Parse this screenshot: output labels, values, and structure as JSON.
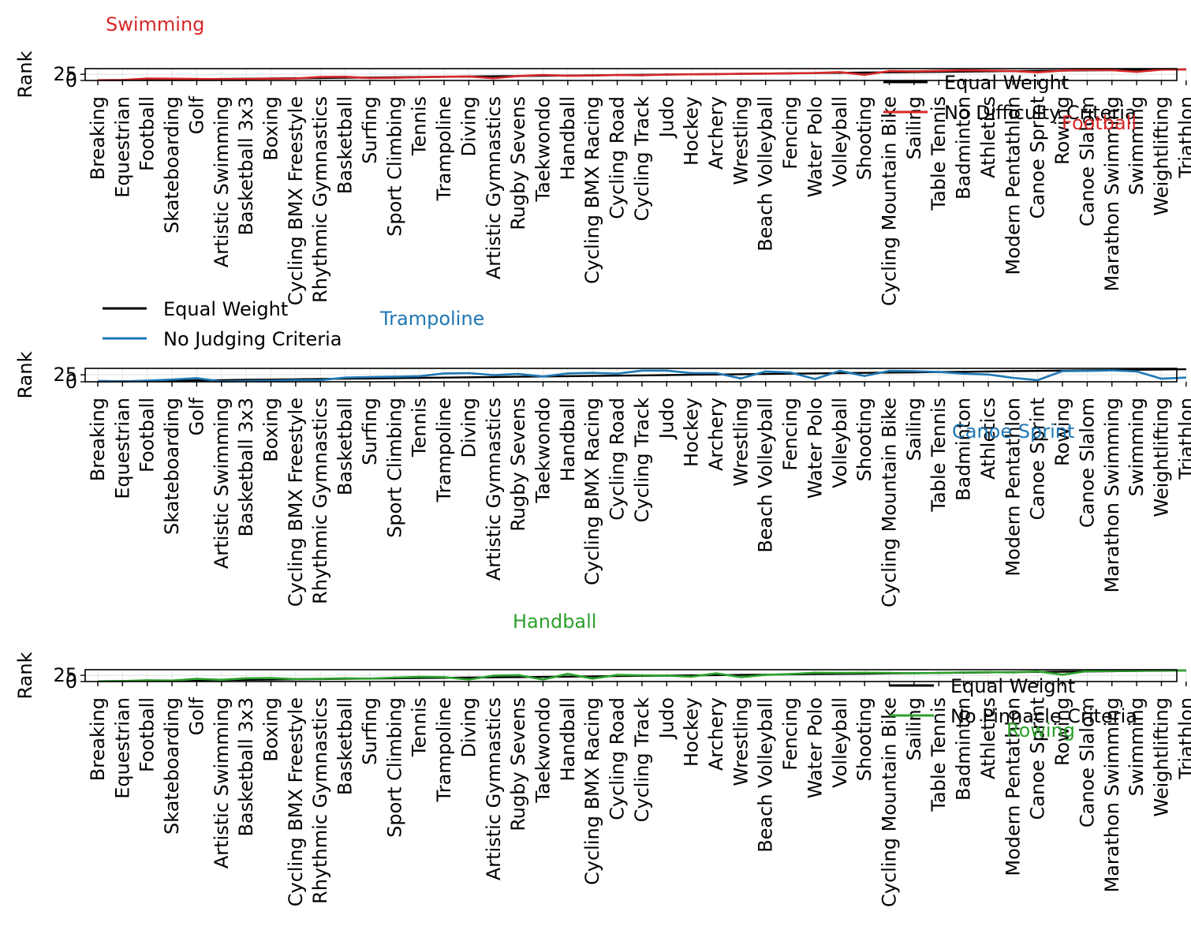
{
  "chart_data": [
    {
      "type": "line",
      "ylabel": "Rank",
      "yticks": [
        "0",
        "25"
      ],
      "ylim": [
        0,
        48
      ],
      "grid": true,
      "legend_position": "right",
      "categories": [
        "Breaking",
        "Equestrian",
        "Football",
        "Skateboarding",
        "Golf",
        "Artistic Swimming",
        "Basketball 3x3",
        "Boxing",
        "Cycling BMX Freestyle",
        "Rhythmic Gymnastics",
        "Basketball",
        "Surfing",
        "Sport Climbing",
        "Tennis",
        "Trampoline",
        "Diving",
        "Artistic Gymnastics",
        "Rugby Sevens",
        "Taekwondo",
        "Handball",
        "Cycling BMX Racing",
        "Cycling Road",
        "Cycling Track",
        "Judo",
        "Hockey",
        "Archery",
        "Wrestling",
        "Beach Volleyball",
        "Fencing",
        "Water Polo",
        "Volleyball",
        "Shooting",
        "Cycling Mountain Bike",
        "Sailing",
        "Table Tennis",
        "Badminton",
        "Athletics",
        "Modern Pentathlon",
        "Canoe Sprint",
        "Rowing",
        "Canoe Slalom",
        "Marathon Swimming",
        "Swimming",
        "Weightlifting",
        "Triathlon"
      ],
      "series": [
        {
          "name": "Equal Weight",
          "color": "#000000",
          "values": [
            1,
            2,
            3,
            4,
            5,
            6,
            7,
            8,
            9,
            10,
            11,
            12,
            13,
            14,
            15,
            16,
            17,
            18,
            19,
            20,
            21,
            22,
            23,
            24,
            25,
            26,
            27,
            28,
            29,
            30,
            31,
            32,
            33,
            34,
            35,
            36,
            37,
            38,
            39,
            40,
            41,
            42,
            43,
            44,
            45
          ]
        },
        {
          "name": "No Difficulty Criteria",
          "color": "#d62728",
          "values": [
            1,
            2,
            8,
            7,
            6,
            5,
            6,
            7,
            8,
            14,
            15,
            10,
            11,
            13,
            15,
            16,
            9,
            18,
            22,
            19,
            20,
            22,
            21,
            24,
            25,
            26,
            27,
            28,
            29,
            30,
            34,
            23,
            38,
            37,
            39,
            41,
            40,
            38,
            33,
            40,
            43,
            42,
            35,
            44,
            45
          ]
        },
        {
          "name": "Swimming",
          "color": "#d62728",
          "annotation": true
        },
        {
          "name": "Football",
          "color": "#d62728",
          "annotation": true
        }
      ]
    },
    {
      "type": "line",
      "ylabel": "Rank",
      "yticks": [
        "0",
        "25"
      ],
      "ylim": [
        0,
        48
      ],
      "grid": true,
      "legend_position": "top-left",
      "categories": [
        "Breaking",
        "Equestrian",
        "Football",
        "Skateboarding",
        "Golf",
        "Artistic Swimming",
        "Basketball 3x3",
        "Boxing",
        "Cycling BMX Freestyle",
        "Rhythmic Gymnastics",
        "Basketball",
        "Surfing",
        "Sport Climbing",
        "Tennis",
        "Trampoline",
        "Diving",
        "Artistic Gymnastics",
        "Rugby Sevens",
        "Taekwondo",
        "Handball",
        "Cycling BMX Racing",
        "Cycling Road",
        "Cycling Track",
        "Judo",
        "Hockey",
        "Archery",
        "Wrestling",
        "Beach Volleyball",
        "Fencing",
        "Water Polo",
        "Volleyball",
        "Shooting",
        "Cycling Mountain Bike",
        "Sailing",
        "Table Tennis",
        "Badminton",
        "Athletics",
        "Modern Pentathlon",
        "Canoe Sprint",
        "Rowing",
        "Canoe Slalom",
        "Marathon Swimming",
        "Swimming",
        "Weightlifting",
        "Triathlon"
      ],
      "series": [
        {
          "name": "Equal Weight",
          "color": "#000000",
          "values": [
            1,
            2,
            3,
            4,
            5,
            6,
            7,
            8,
            9,
            10,
            11,
            12,
            13,
            14,
            15,
            16,
            17,
            18,
            19,
            20,
            21,
            22,
            23,
            24,
            25,
            26,
            27,
            28,
            29,
            30,
            31,
            32,
            33,
            34,
            35,
            36,
            37,
            38,
            39,
            40,
            41,
            42,
            43,
            44,
            45
          ]
        },
        {
          "name": "No Judging Criteria",
          "color": "#1f77b4",
          "values": [
            3,
            1,
            4,
            8,
            13,
            1,
            3,
            4,
            6,
            6,
            15,
            17,
            18,
            20,
            30,
            31,
            24,
            28,
            19,
            30,
            32,
            29,
            40,
            40,
            31,
            31,
            12,
            37,
            33,
            10,
            39,
            21,
            39,
            38,
            35,
            29,
            26,
            14,
            6,
            38,
            39,
            41,
            37,
            11,
            15
          ]
        },
        {
          "name": "Trampoline",
          "color": "#1f77b4",
          "annotation": true
        },
        {
          "name": "Canoe Sprint",
          "color": "#1f77b4",
          "annotation": true
        }
      ]
    },
    {
      "type": "line",
      "ylabel": "Rank",
      "yticks": [
        "0",
        "25"
      ],
      "ylim": [
        0,
        48
      ],
      "grid": true,
      "legend_position": "right",
      "categories": [
        "Breaking",
        "Equestrian",
        "Football",
        "Skateboarding",
        "Golf",
        "Artistic Swimming",
        "Basketball 3x3",
        "Boxing",
        "Cycling BMX Freestyle",
        "Rhythmic Gymnastics",
        "Basketball",
        "Surfing",
        "Sport Climbing",
        "Tennis",
        "Trampoline",
        "Diving",
        "Artistic Gymnastics",
        "Rugby Sevens",
        "Taekwondo",
        "Handball",
        "Cycling BMX Racing",
        "Cycling Road",
        "Cycling Track",
        "Judo",
        "Hockey",
        "Archery",
        "Wrestling",
        "Beach Volleyball",
        "Fencing",
        "Water Polo",
        "Volleyball",
        "Shooting",
        "Cycling Mountain Bike",
        "Sailing",
        "Table Tennis",
        "Badminton",
        "Athletics",
        "Modern Pentathlon",
        "Canoe Sprint",
        "Rowing",
        "Canoe Slalom",
        "Marathon Swimming",
        "Swimming",
        "Weightlifting",
        "Triathlon"
      ],
      "series": [
        {
          "name": "Equal Weight",
          "color": "#000000",
          "values": [
            1,
            2,
            3,
            4,
            5,
            6,
            7,
            8,
            9,
            10,
            11,
            12,
            13,
            14,
            15,
            16,
            17,
            18,
            19,
            20,
            21,
            22,
            23,
            24,
            25,
            26,
            27,
            28,
            29,
            30,
            31,
            32,
            33,
            34,
            35,
            36,
            37,
            38,
            39,
            40,
            41,
            42,
            43,
            44,
            45
          ]
        },
        {
          "name": "No Pinnacle Criteria",
          "color": "#2ca02c",
          "values": [
            1,
            2,
            5,
            4,
            11,
            7,
            13,
            14,
            10,
            11,
            13,
            12,
            16,
            19,
            18,
            8,
            24,
            26,
            8,
            31,
            12,
            27,
            25,
            24,
            20,
            33,
            18,
            27,
            30,
            36,
            35,
            36,
            35,
            34,
            35,
            37,
            38,
            37,
            41,
            28,
            42,
            43,
            44,
            45,
            45
          ]
        },
        {
          "name": "Handball",
          "color": "#2ca02c",
          "annotation": true
        },
        {
          "name": "Rowing",
          "color": "#2ca02c",
          "annotation": true
        }
      ]
    }
  ]
}
